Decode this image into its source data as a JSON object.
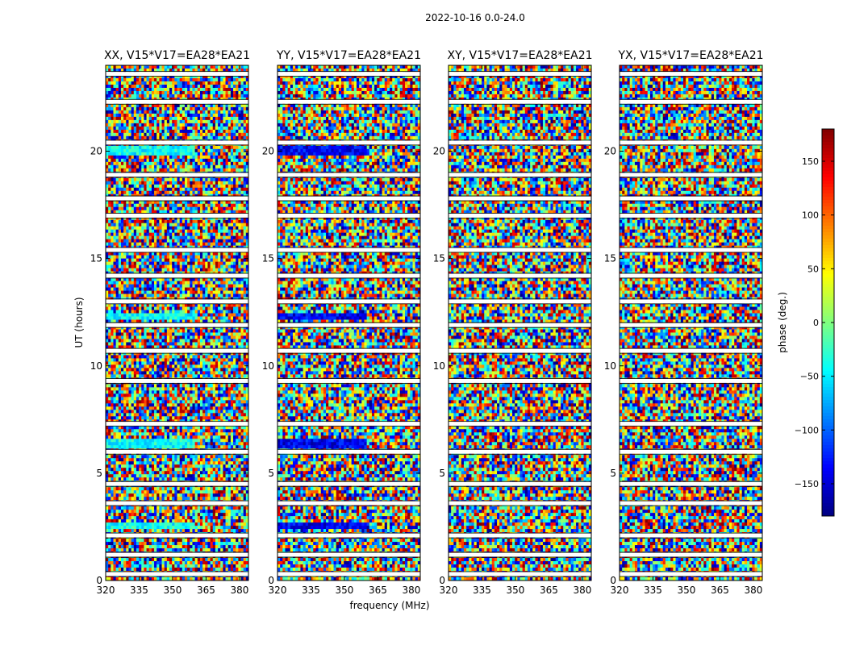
{
  "figure_title": "2022-10-16 0.0-24.0",
  "chart_data": {
    "type": "heatmap",
    "title": "2022-10-16 0.0-24.0",
    "xlabel": "frequency (MHz)",
    "ylabel": "UT (hours)",
    "xlim": [
      320,
      384
    ],
    "ylim": [
      0,
      24
    ],
    "x_ticks": [
      320,
      335,
      350,
      365,
      380
    ],
    "y_ticks": [
      0,
      5,
      10,
      15,
      20
    ],
    "panels": [
      {
        "title": "XX, V15*V17=EA28*EA21",
        "pol": "XX",
        "coherent_phase_deg": -40
      },
      {
        "title": "YY, V15*V17=EA28*EA21",
        "pol": "YY",
        "coherent_phase_deg": -140
      },
      {
        "title": "XY, V15*V17=EA28*EA21",
        "pol": "XY",
        "coherent_phase_deg": null
      },
      {
        "title": "YX, V15*V17=EA28*EA21",
        "pol": "YX",
        "coherent_phase_deg": null
      }
    ],
    "flagged_gaps_hours": [
      0.3,
      1.2,
      2.1,
      3.6,
      4.5,
      6.0,
      7.3,
      9.3,
      10.7,
      11.9,
      13.0,
      14.2,
      15.4,
      17.0,
      17.8,
      18.9,
      20.4,
      22.3,
      23.6
    ],
    "strong_rows": [
      {
        "start": 2.35,
        "end": 2.65
      },
      {
        "start": 6.2,
        "end": 6.55
      },
      {
        "start": 12.1,
        "end": 12.5
      },
      {
        "start": 19.75,
        "end": 20.2
      }
    ],
    "colorbar": {
      "label": "phase (deg.)",
      "range": [
        -180,
        180
      ],
      "ticks": [
        -150,
        -100,
        -50,
        0,
        50,
        100,
        150
      ],
      "tick_labels": [
        "−150",
        "−100",
        "−50",
        "0",
        "50",
        "100",
        "150"
      ],
      "colormap": "jet"
    }
  }
}
